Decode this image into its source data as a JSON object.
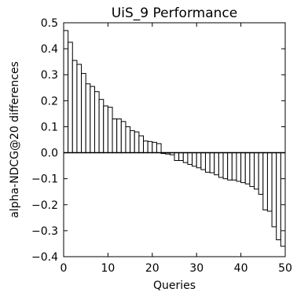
{
  "chart_data": {
    "type": "bar",
    "title": "UiS_9 Performance",
    "xlabel": "Queries",
    "ylabel": "alpha-NDCG@20 differences",
    "xlim": [
      0,
      50
    ],
    "ylim": [
      -0.4,
      0.5
    ],
    "x_ticks": [
      0,
      10,
      20,
      30,
      40,
      50
    ],
    "y_ticks": [
      0.5,
      0.4,
      0.3,
      0.2,
      0.1,
      0.0,
      -0.1,
      -0.2,
      -0.3,
      -0.4
    ],
    "x_tick_labels": [
      "0",
      "10",
      "20",
      "30",
      "40",
      "50"
    ],
    "y_tick_labels": [
      "0.5",
      "0.4",
      "0.3",
      "0.2",
      "0.1",
      "0.0",
      "−0.1",
      "−0.2",
      "−0.3",
      "−0.4"
    ],
    "grid": false,
    "bar_fill": "#ffffff",
    "bar_edge": "#000000",
    "x": [
      0,
      1,
      2,
      3,
      4,
      5,
      6,
      7,
      8,
      9,
      10,
      11,
      12,
      13,
      14,
      15,
      16,
      17,
      18,
      19,
      20,
      21,
      22,
      23,
      24,
      25,
      26,
      27,
      28,
      29,
      30,
      31,
      32,
      33,
      34,
      35,
      36,
      37,
      38,
      39,
      40,
      41,
      42,
      43,
      44,
      45,
      46,
      47,
      48,
      49
    ],
    "values": [
      0.47,
      0.425,
      0.355,
      0.34,
      0.305,
      0.265,
      0.255,
      0.235,
      0.205,
      0.18,
      0.175,
      0.13,
      0.13,
      0.12,
      0.1,
      0.085,
      0.08,
      0.065,
      0.045,
      0.043,
      0.04,
      0.035,
      -0.003,
      -0.005,
      -0.008,
      -0.03,
      -0.03,
      -0.038,
      -0.045,
      -0.052,
      -0.058,
      -0.065,
      -0.075,
      -0.077,
      -0.085,
      -0.095,
      -0.1,
      -0.105,
      -0.105,
      -0.11,
      -0.115,
      -0.12,
      -0.13,
      -0.14,
      -0.16,
      -0.22,
      -0.225,
      -0.285,
      -0.335,
      -0.36
    ]
  }
}
